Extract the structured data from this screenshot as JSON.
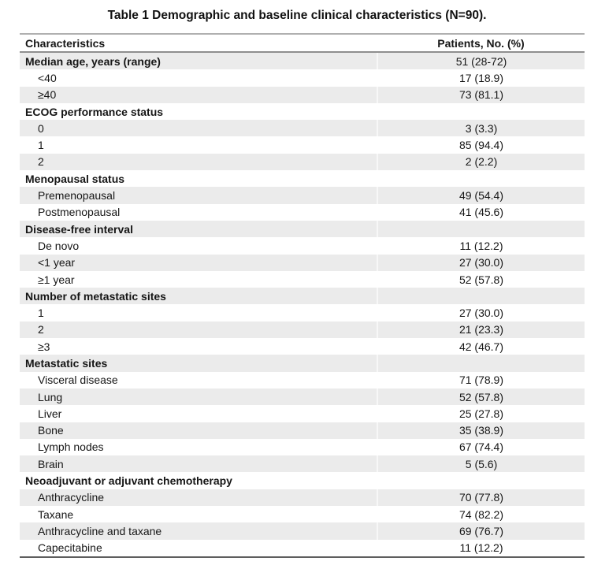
{
  "title": "Table 1 Demographic and baseline clinical characteristics (N=90).",
  "colors": {
    "stripe": "#ebebeb",
    "top_border": "#b0b0b0",
    "header_bottom_border": "#8f8f8f",
    "table_bottom_border": "#5e5e5e",
    "text": "#161616"
  },
  "table": {
    "columns": [
      "Characteristics",
      "Patients, No. (%)"
    ],
    "rows": [
      {
        "label": "Median age, years (range)",
        "value": "51 (28-72)",
        "section": true
      },
      {
        "label": "<40",
        "value": "17 (18.9)",
        "section": false
      },
      {
        "label": "≥40",
        "value": "73 (81.1)",
        "section": false
      },
      {
        "label": "ECOG performance status",
        "value": "",
        "section": true
      },
      {
        "label": "0",
        "value": "3 (3.3)",
        "section": false
      },
      {
        "label": "1",
        "value": "85 (94.4)",
        "section": false
      },
      {
        "label": "2",
        "value": "2 (2.2)",
        "section": false
      },
      {
        "label": "Menopausal status",
        "value": "",
        "section": true
      },
      {
        "label": "Premenopausal",
        "value": "49 (54.4)",
        "section": false
      },
      {
        "label": "Postmenopausal",
        "value": "41 (45.6)",
        "section": false
      },
      {
        "label": "Disease-free interval",
        "value": "",
        "section": true
      },
      {
        "label": "De novo",
        "value": "11 (12.2)",
        "section": false
      },
      {
        "label": "<1 year",
        "value": "27 (30.0)",
        "section": false
      },
      {
        "label": "≥1 year",
        "value": "52 (57.8)",
        "section": false
      },
      {
        "label": "Number of metastatic sites",
        "value": "",
        "section": true
      },
      {
        "label": "1",
        "value": "27 (30.0)",
        "section": false
      },
      {
        "label": "2",
        "value": "21 (23.3)",
        "section": false
      },
      {
        "label": "≥3",
        "value": "42 (46.7)",
        "section": false
      },
      {
        "label": "Metastatic sites",
        "value": "",
        "section": true
      },
      {
        "label": "Visceral disease",
        "value": "71 (78.9)",
        "section": false
      },
      {
        "label": "Lung",
        "value": "52 (57.8)",
        "section": false
      },
      {
        "label": "Liver",
        "value": "25 (27.8)",
        "section": false
      },
      {
        "label": "Bone",
        "value": "35 (38.9)",
        "section": false
      },
      {
        "label": "Lymph nodes",
        "value": "67 (74.4)",
        "section": false
      },
      {
        "label": "Brain",
        "value": "5 (5.6)",
        "section": false
      },
      {
        "label": "Neoadjuvant or adjuvant chemotherapy",
        "value": "",
        "section": true
      },
      {
        "label": "Anthracycline",
        "value": "70 (77.8)",
        "section": false
      },
      {
        "label": "Taxane",
        "value": "74 (82.2)",
        "section": false
      },
      {
        "label": "Anthracycline and taxane",
        "value": "69 (76.7)",
        "section": false
      },
      {
        "label": "Capecitabine",
        "value": "11 (12.2)",
        "section": false
      }
    ]
  }
}
